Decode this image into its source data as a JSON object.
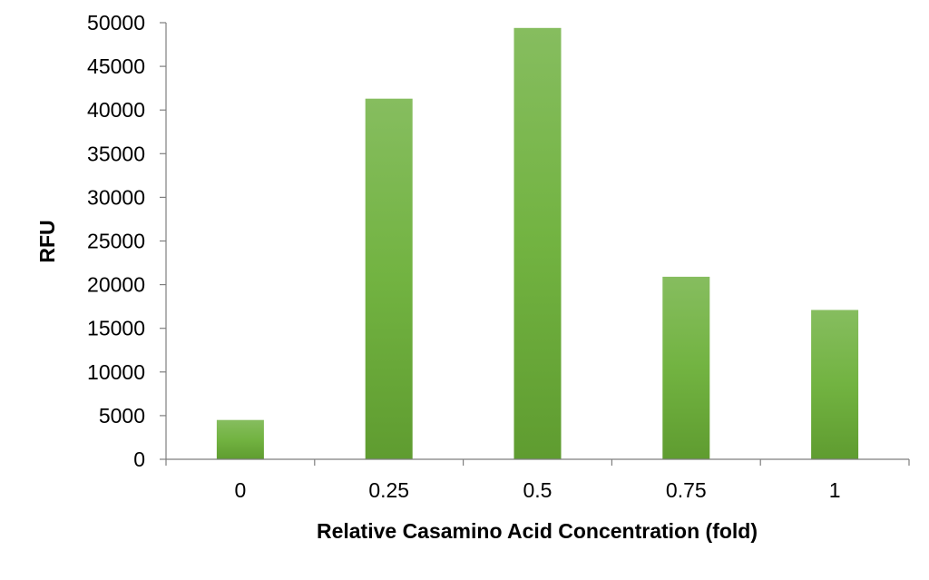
{
  "chart_data": {
    "type": "bar",
    "title": "",
    "xlabel": "Relative Casamino Acid Concentration (fold)",
    "ylabel": "RFU",
    "categories": [
      "0",
      "0.25",
      "0.5",
      "0.75",
      "1"
    ],
    "values": [
      4500,
      41300,
      49400,
      20900,
      17100
    ],
    "ylim": [
      0,
      50000
    ],
    "yticks": [
      "0",
      "5000",
      "10000",
      "15000",
      "20000",
      "25000",
      "30000",
      "35000",
      "40000",
      "45000",
      "50000"
    ],
    "grid": false,
    "legend": "none",
    "bar_color_top": "#86bd5f",
    "bar_color_mid": "#72b341",
    "bar_color_bottom": "#5f9c30",
    "axis_color": "#7f7f7f"
  }
}
